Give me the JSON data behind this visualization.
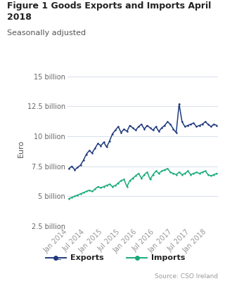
{
  "title": "Figure 1 Goods Exports and Imports April\n2018",
  "subtitle": "Seasonally adjusted",
  "ylabel": "Euro",
  "source": "Source: CSO Ireland",
  "ylim": [
    2.5,
    15.5
  ],
  "yticks": [
    2.5,
    5.0,
    7.5,
    10.0,
    12.5,
    15.0
  ],
  "ytick_labels": [
    "2.5 billion",
    "5 billion",
    "7.5 billion",
    "10 billion",
    "12.5 billion",
    "15 billion"
  ],
  "xtick_labels": [
    "Jan 2014",
    "Jul 2014",
    "Jan 2015",
    "Jul 2015",
    "Jan 2016",
    "Jul 2016",
    "Jan 2017",
    "Jul 2017",
    "Jan 2018"
  ],
  "exports_color": "#1f3a7d",
  "imports_color": "#1aaa7a",
  "legend_exports": "Exports",
  "legend_imports": "Imports",
  "exports": [
    7.3,
    7.5,
    7.2,
    7.4,
    7.6,
    8.0,
    8.5,
    8.8,
    8.6,
    9.0,
    9.4,
    9.2,
    9.5,
    9.1,
    9.6,
    10.2,
    10.5,
    10.8,
    10.3,
    10.6,
    10.4,
    10.9,
    10.7,
    10.5,
    10.8,
    11.0,
    10.6,
    10.9,
    10.7,
    10.5,
    10.8,
    10.4,
    10.7,
    10.9,
    11.2,
    11.0,
    10.6,
    10.3,
    12.7,
    11.2,
    10.8,
    10.9,
    11.0,
    11.1,
    10.8,
    10.9,
    11.0,
    11.2,
    11.0,
    10.8,
    11.0,
    10.9
  ],
  "imports": [
    4.8,
    4.9,
    5.0,
    5.1,
    5.2,
    5.3,
    5.4,
    5.5,
    5.4,
    5.6,
    5.8,
    5.7,
    5.8,
    5.9,
    6.0,
    5.8,
    5.9,
    6.1,
    6.3,
    6.4,
    5.8,
    6.3,
    6.5,
    6.7,
    6.9,
    6.5,
    6.8,
    7.0,
    6.4,
    6.8,
    7.1,
    6.9,
    7.1,
    7.2,
    7.3,
    7.0,
    6.9,
    6.8,
    7.0,
    6.8,
    6.9,
    7.1,
    6.8,
    6.9,
    7.0,
    6.9,
    7.0,
    7.1,
    6.8,
    6.7,
    6.8,
    6.9
  ],
  "background_color": "#ffffff",
  "grid_color": "#d0d8e8",
  "title_fontsize": 9,
  "subtitle_fontsize": 8,
  "tick_fontsize": 7,
  "label_fontsize": 8,
  "source_fontsize": 6.5
}
